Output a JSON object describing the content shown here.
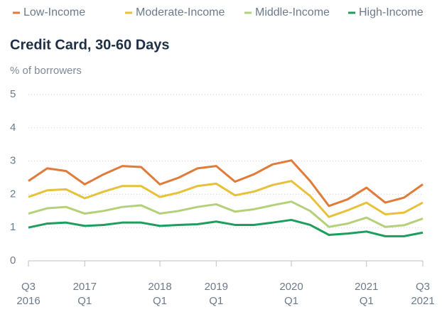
{
  "chart_data": {
    "type": "line",
    "title": "Credit Card, 30-60 Days",
    "y_label": "% of borrowers",
    "categories": [
      "Q3\n2016",
      null,
      null,
      "2017\nQ1",
      null,
      null,
      null,
      "2018\nQ1",
      null,
      null,
      "2019\nQ1",
      null,
      null,
      null,
      "2020\nQ1",
      null,
      null,
      null,
      "2021\nQ1",
      null,
      null,
      "Q3\n2021"
    ],
    "series": [
      {
        "name": "Low-Income",
        "color": "#e07b39",
        "values": [
          2.4,
          2.78,
          2.7,
          2.3,
          2.6,
          2.85,
          2.82,
          2.3,
          2.5,
          2.78,
          2.85,
          2.38,
          2.6,
          2.9,
          3.02,
          2.4,
          1.65,
          1.85,
          2.2,
          1.75,
          1.9,
          2.3
        ]
      },
      {
        "name": "Moderate-Income",
        "color": "#e8c13a",
        "values": [
          1.92,
          2.12,
          2.15,
          1.88,
          2.08,
          2.25,
          2.25,
          1.92,
          2.05,
          2.25,
          2.32,
          1.97,
          2.08,
          2.28,
          2.4,
          1.95,
          1.32,
          1.52,
          1.75,
          1.4,
          1.45,
          1.75
        ]
      },
      {
        "name": "Middle-Income",
        "color": "#b5d07a",
        "values": [
          1.42,
          1.58,
          1.62,
          1.42,
          1.5,
          1.62,
          1.67,
          1.42,
          1.5,
          1.62,
          1.7,
          1.48,
          1.55,
          1.67,
          1.78,
          1.5,
          1.02,
          1.12,
          1.3,
          1.02,
          1.07,
          1.27
        ]
      },
      {
        "name": "High-Income",
        "color": "#1e9e5e",
        "values": [
          1.0,
          1.12,
          1.15,
          1.05,
          1.08,
          1.15,
          1.15,
          1.05,
          1.08,
          1.1,
          1.18,
          1.08,
          1.08,
          1.15,
          1.23,
          1.08,
          0.78,
          0.82,
          0.88,
          0.74,
          0.74,
          0.85
        ]
      }
    ],
    "ylim": [
      0,
      5
    ],
    "yticks": [
      0,
      1,
      2,
      3,
      4,
      5
    ],
    "grid": true,
    "legend": "top"
  }
}
